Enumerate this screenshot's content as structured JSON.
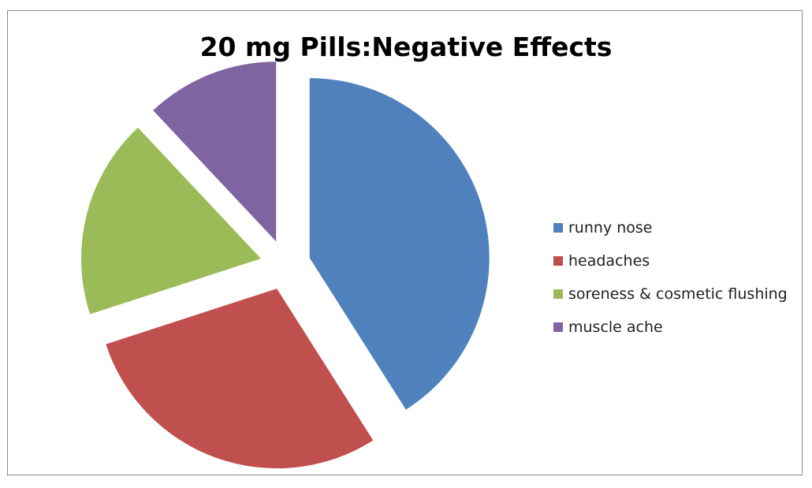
{
  "chart_data": {
    "type": "pie",
    "title": "20 mg Pills:Negative Effects",
    "legend_position": "right",
    "exploded": true,
    "series": [
      {
        "categories": [
          "runny nose",
          "headaches",
          "soreness & cosmetic flushing",
          "muscle ache"
        ],
        "values": [
          41,
          29,
          18,
          12
        ],
        "colors": [
          "#4f81bd",
          "#c0504d",
          "#9bbb59",
          "#8064a2"
        ]
      }
    ]
  }
}
